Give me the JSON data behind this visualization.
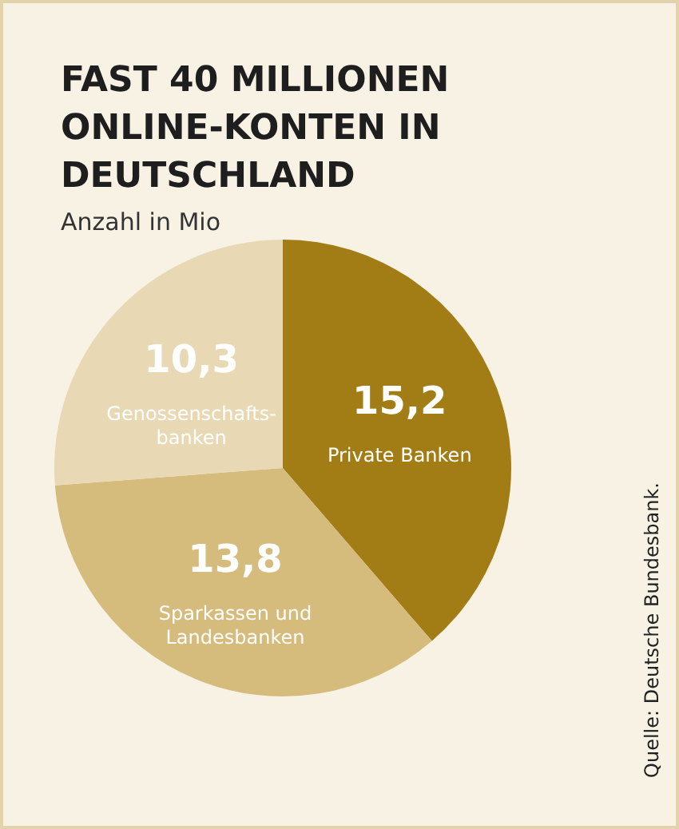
{
  "chart_data": {
    "type": "pie",
    "title": "FAST 40 MILLIONEN ONLINE-KONTEN IN DEUTSCHLAND",
    "subtitle": "Anzahl in Mio",
    "categories": [
      "Private Banken",
      "Sparkassen und\nLandesbanken",
      "Genossenschafts-\nbanken"
    ],
    "values": [
      15.2,
      13.8,
      10.3
    ],
    "value_labels": [
      "15,2",
      "13,8",
      "10,3"
    ],
    "colors": [
      "#a27c14",
      "#d5bb7c",
      "#e8d9b4"
    ],
    "annotations": [
      "Quelle: Deutsche Bundesbank."
    ],
    "legend": false
  }
}
